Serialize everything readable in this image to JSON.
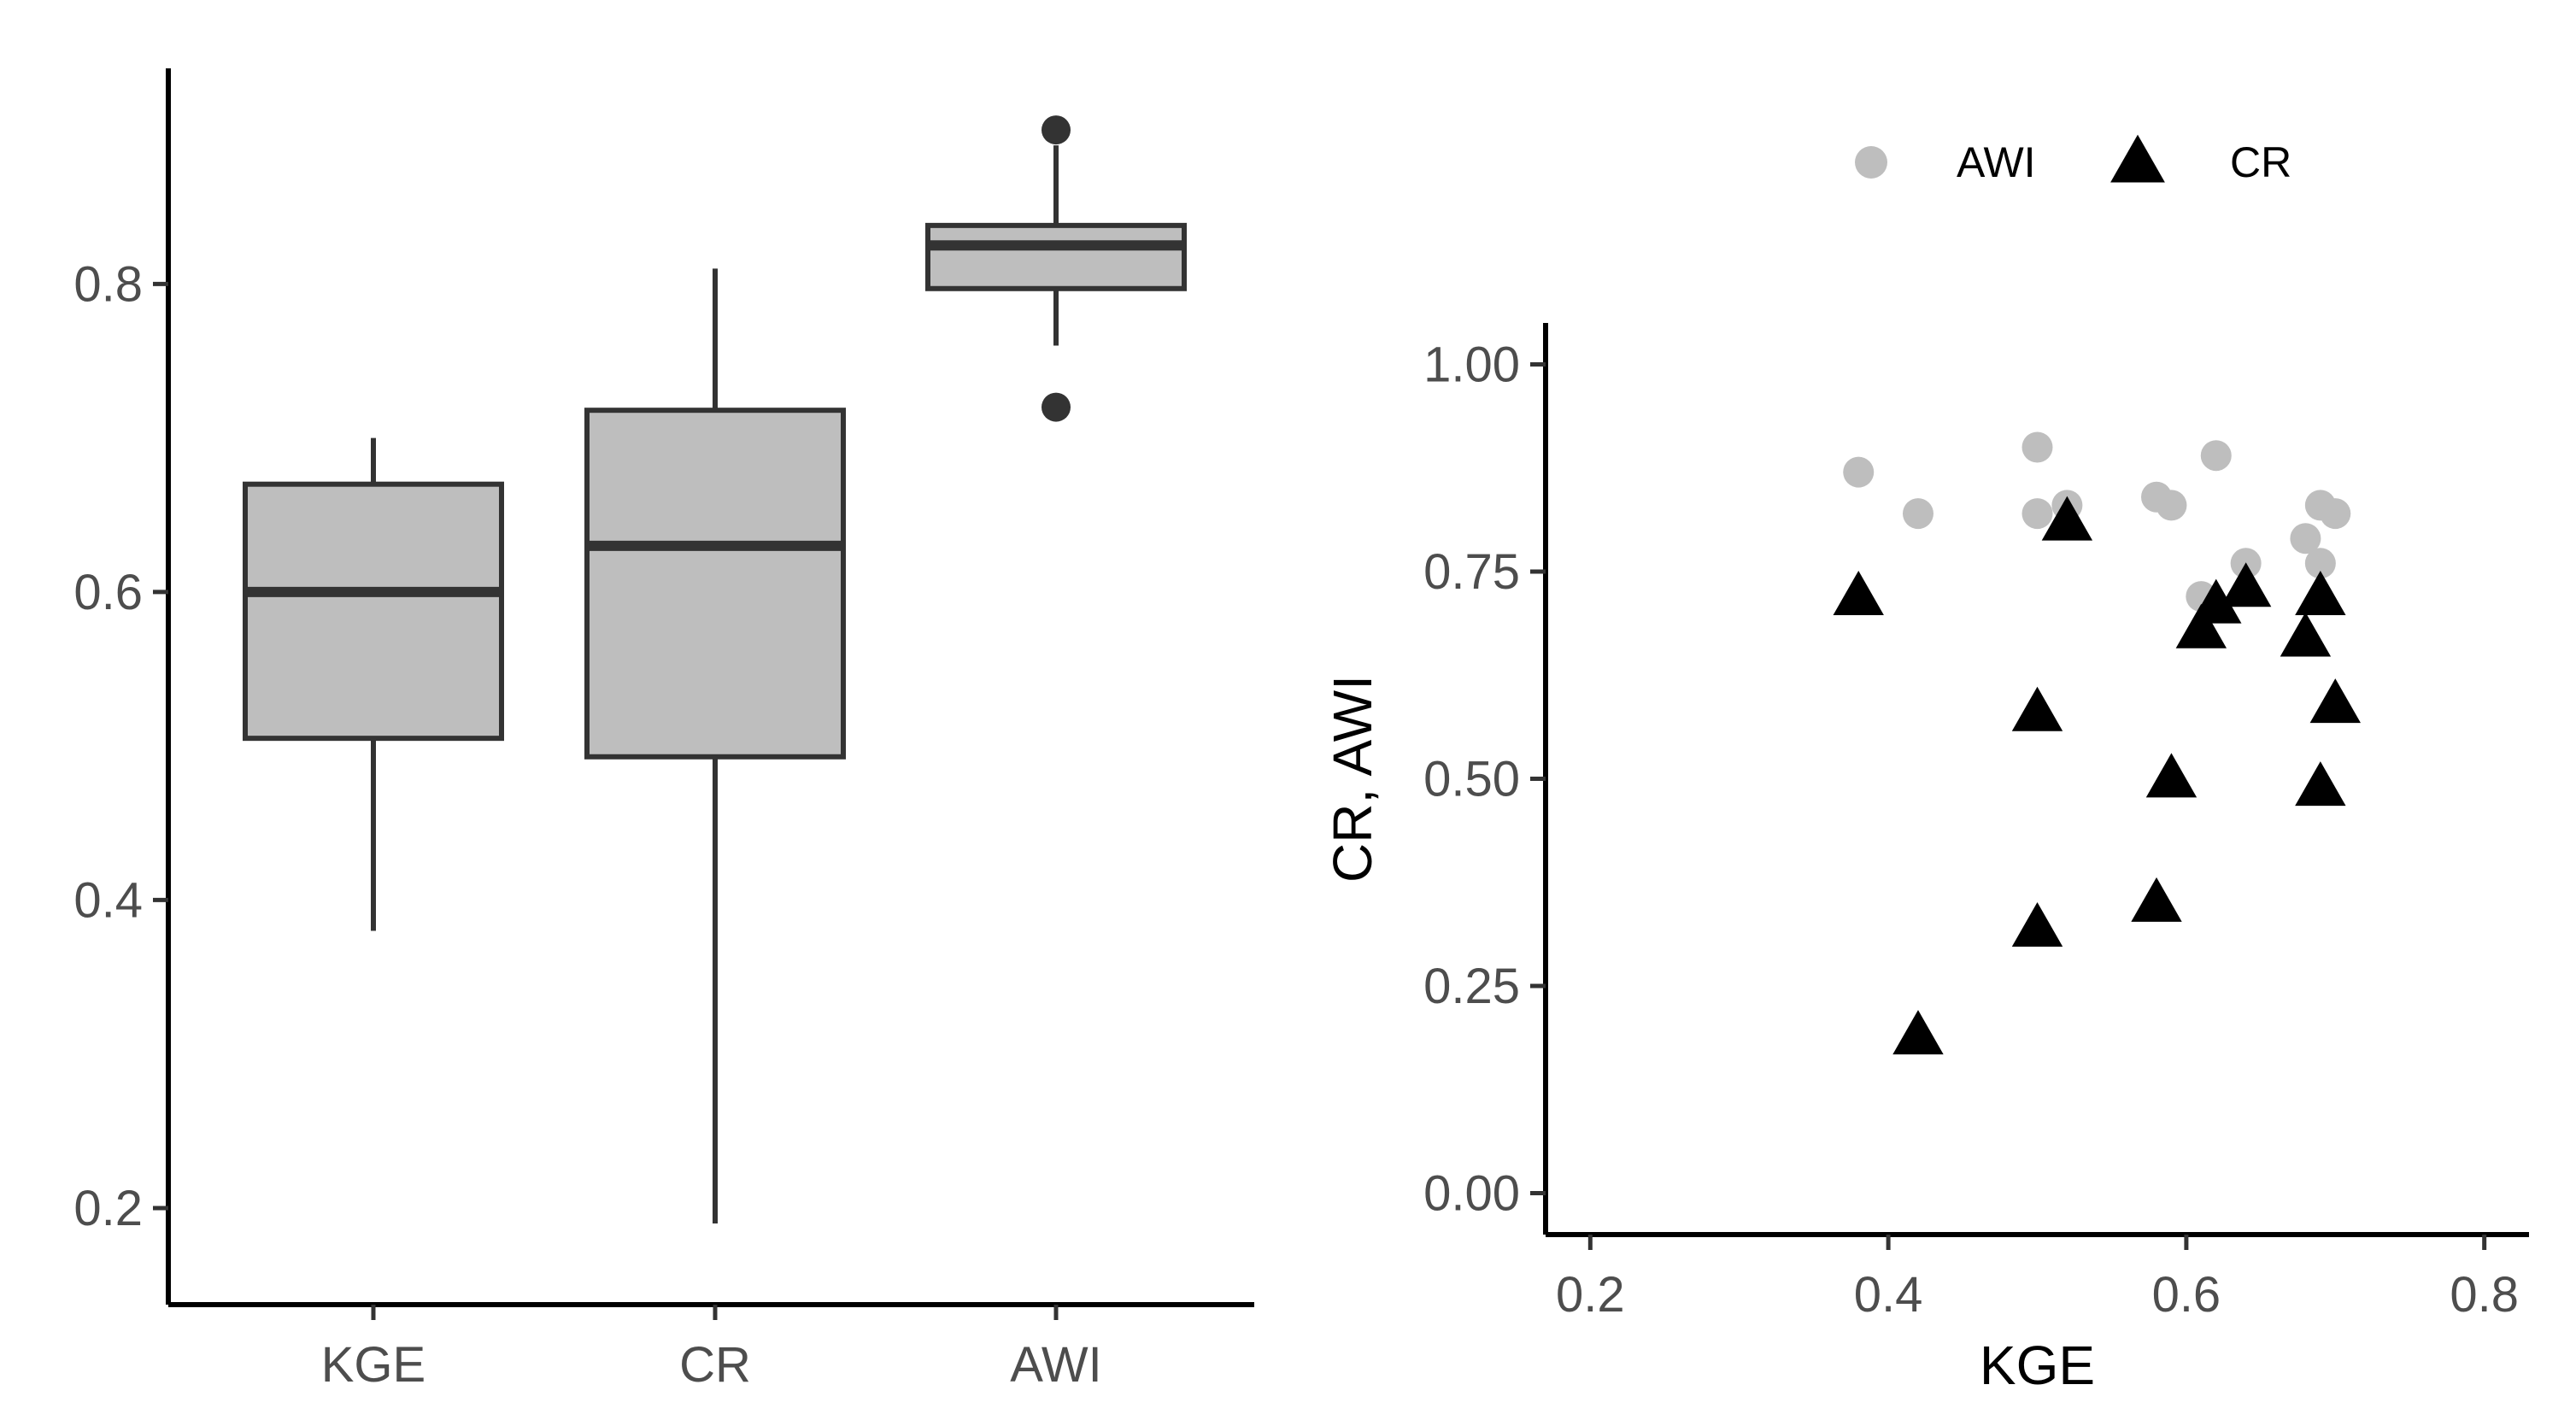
{
  "chart_data": [
    {
      "type": "box",
      "categories": [
        "KGE",
        "CR",
        "AWI"
      ],
      "boxes": [
        {
          "name": "KGE",
          "whisker_low": 0.38,
          "q1": 0.505,
          "median": 0.6,
          "q3": 0.67,
          "whisker_high": 0.7,
          "outliers": []
        },
        {
          "name": "CR",
          "whisker_low": 0.19,
          "q1": 0.493,
          "median": 0.63,
          "q3": 0.718,
          "whisker_high": 0.81,
          "outliers": []
        },
        {
          "name": "AWI",
          "whisker_low": 0.76,
          "q1": 0.797,
          "median": 0.825,
          "q3": 0.838,
          "whisker_high": 0.89,
          "outliers": [
            0.72,
            0.9
          ]
        }
      ],
      "ylim": [
        0.18,
        0.94
      ],
      "yticks": [
        "0.2",
        "0.4",
        "0.6",
        "0.8"
      ],
      "ytick_values": [
        0.2,
        0.4,
        0.6,
        0.8
      ],
      "xlabel": "",
      "ylabel": "",
      "box_fill": "#bebebe",
      "box_stroke": "#333333",
      "grid": false
    },
    {
      "type": "scatter",
      "xlabel": "KGE",
      "ylabel": "CR, AWI",
      "xlim": [
        0.17,
        0.83
      ],
      "ylim": [
        -0.05,
        1.05
      ],
      "xticks": [
        "0.2",
        "0.4",
        "0.6",
        "0.8"
      ],
      "xtick_values": [
        0.2,
        0.4,
        0.6,
        0.8
      ],
      "yticks": [
        "0.00",
        "0.25",
        "0.50",
        "0.75",
        "1.00"
      ],
      "ytick_values": [
        0.0,
        0.25,
        0.5,
        0.75,
        1.0
      ],
      "legend_position": "top",
      "grid": false,
      "series": [
        {
          "name": "AWI",
          "marker": "circle",
          "color": "#bebebe",
          "points": [
            [
              0.38,
              0.87
            ],
            [
              0.42,
              0.82
            ],
            [
              0.5,
              0.9
            ],
            [
              0.5,
              0.82
            ],
            [
              0.52,
              0.83
            ],
            [
              0.58,
              0.84
            ],
            [
              0.59,
              0.83
            ],
            [
              0.62,
              0.89
            ],
            [
              0.64,
              0.76
            ],
            [
              0.61,
              0.72
            ],
            [
              0.68,
              0.79
            ],
            [
              0.69,
              0.83
            ],
            [
              0.7,
              0.82
            ],
            [
              0.69,
              0.76
            ]
          ]
        },
        {
          "name": "CR",
          "marker": "triangle",
          "color": "#000000",
          "points": [
            [
              0.38,
              0.72
            ],
            [
              0.42,
              0.19
            ],
            [
              0.5,
              0.58
            ],
            [
              0.5,
              0.32
            ],
            [
              0.52,
              0.81
            ],
            [
              0.58,
              0.35
            ],
            [
              0.59,
              0.5
            ],
            [
              0.61,
              0.68
            ],
            [
              0.62,
              0.71
            ],
            [
              0.64,
              0.73
            ],
            [
              0.68,
              0.67
            ],
            [
              0.69,
              0.72
            ],
            [
              0.69,
              0.49
            ],
            [
              0.7,
              0.59
            ]
          ]
        }
      ]
    }
  ]
}
